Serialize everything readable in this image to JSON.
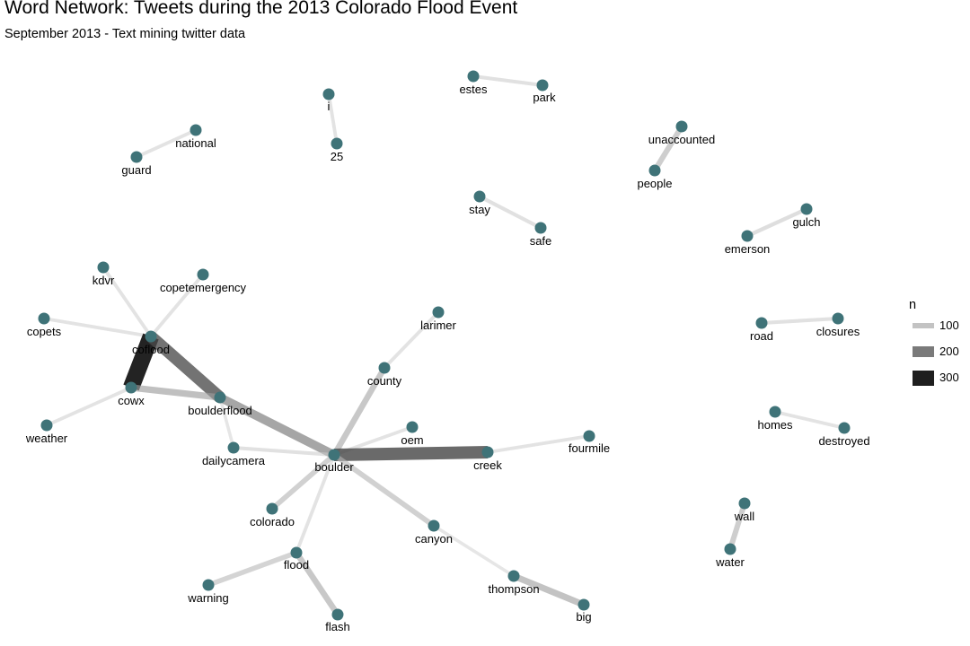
{
  "header": {
    "title": "Word Network: Tweets during the 2013 Colorado Flood Event",
    "subtitle": "September 2013 - Text mining twitter data"
  },
  "legend": {
    "title": "n",
    "items": [
      {
        "label": "100",
        "n": 100
      },
      {
        "label": "200",
        "n": 200
      },
      {
        "label": "300",
        "n": 300
      }
    ]
  },
  "colors": {
    "node": "#3f7378",
    "edge_low": "#d9d9d9",
    "edge_high": "#000000",
    "text": "#000000",
    "background": "#ffffff"
  },
  "chart_data": {
    "type": "network",
    "nodes": [
      {
        "id": "estes",
        "label": "estes"
      },
      {
        "id": "park",
        "label": "park"
      },
      {
        "id": "i",
        "label": "i"
      },
      {
        "id": "25",
        "label": "25"
      },
      {
        "id": "national",
        "label": "national"
      },
      {
        "id": "guard",
        "label": "guard"
      },
      {
        "id": "unaccounted",
        "label": "unaccounted"
      },
      {
        "id": "people",
        "label": "people"
      },
      {
        "id": "stay",
        "label": "stay"
      },
      {
        "id": "safe",
        "label": "safe"
      },
      {
        "id": "gulch",
        "label": "gulch"
      },
      {
        "id": "emerson",
        "label": "emerson"
      },
      {
        "id": "kdvr",
        "label": "kdvr"
      },
      {
        "id": "copetemergency",
        "label": "copetemergency"
      },
      {
        "id": "copets",
        "label": "copets"
      },
      {
        "id": "coflood",
        "label": "coflood"
      },
      {
        "id": "cowx",
        "label": "cowx"
      },
      {
        "id": "weather",
        "label": "weather"
      },
      {
        "id": "boulderflood",
        "label": "boulderflood"
      },
      {
        "id": "larimer",
        "label": "larimer"
      },
      {
        "id": "county",
        "label": "county"
      },
      {
        "id": "road",
        "label": "road"
      },
      {
        "id": "closures",
        "label": "closures"
      },
      {
        "id": "oem",
        "label": "oem"
      },
      {
        "id": "dailycamera",
        "label": "dailycamera"
      },
      {
        "id": "boulder",
        "label": "boulder"
      },
      {
        "id": "creek",
        "label": "creek"
      },
      {
        "id": "fourmile",
        "label": "fourmile"
      },
      {
        "id": "homes",
        "label": "homes"
      },
      {
        "id": "destroyed",
        "label": "destroyed"
      },
      {
        "id": "colorado",
        "label": "colorado"
      },
      {
        "id": "flood",
        "label": "flood"
      },
      {
        "id": "warning",
        "label": "warning"
      },
      {
        "id": "flash",
        "label": "flash"
      },
      {
        "id": "canyon",
        "label": "canyon"
      },
      {
        "id": "thompson",
        "label": "thompson"
      },
      {
        "id": "big",
        "label": "big"
      },
      {
        "id": "wall",
        "label": "wall"
      },
      {
        "id": "water",
        "label": "water"
      }
    ],
    "edges": [
      {
        "from": "estes",
        "to": "park",
        "n": 60
      },
      {
        "from": "i",
        "to": "25",
        "n": 55
      },
      {
        "from": "national",
        "to": "guard",
        "n": 55
      },
      {
        "from": "unaccounted",
        "to": "people",
        "n": 95
      },
      {
        "from": "stay",
        "to": "safe",
        "n": 60
      },
      {
        "from": "gulch",
        "to": "emerson",
        "n": 65
      },
      {
        "from": "kdvr",
        "to": "coflood",
        "n": 55
      },
      {
        "from": "copetemergency",
        "to": "coflood",
        "n": 55
      },
      {
        "from": "copets",
        "to": "coflood",
        "n": 55
      },
      {
        "from": "weather",
        "to": "cowx",
        "n": 55
      },
      {
        "from": "coflood",
        "to": "cowx",
        "n": 320
      },
      {
        "from": "coflood",
        "to": "boulderflood",
        "n": 230
      },
      {
        "from": "cowx",
        "to": "boulderflood",
        "n": 120
      },
      {
        "from": "boulderflood",
        "to": "dailycamera",
        "n": 50
      },
      {
        "from": "boulderflood",
        "to": "boulder",
        "n": 160
      },
      {
        "from": "larimer",
        "to": "county",
        "n": 55
      },
      {
        "from": "county",
        "to": "boulder",
        "n": 105
      },
      {
        "from": "road",
        "to": "closures",
        "n": 60
      },
      {
        "from": "oem",
        "to": "boulder",
        "n": 55
      },
      {
        "from": "dailycamera",
        "to": "boulder",
        "n": 60
      },
      {
        "from": "boulder",
        "to": "creek",
        "n": 240
      },
      {
        "from": "creek",
        "to": "fourmile",
        "n": 55
      },
      {
        "from": "homes",
        "to": "destroyed",
        "n": 55
      },
      {
        "from": "colorado",
        "to": "boulder",
        "n": 90
      },
      {
        "from": "flood",
        "to": "boulder",
        "n": 55
      },
      {
        "from": "warning",
        "to": "flood",
        "n": 85
      },
      {
        "from": "flash",
        "to": "flood",
        "n": 105
      },
      {
        "from": "boulder",
        "to": "canyon",
        "n": 90
      },
      {
        "from": "canyon",
        "to": "thompson",
        "n": 50
      },
      {
        "from": "thompson",
        "to": "big",
        "n": 115
      },
      {
        "from": "wall",
        "to": "water",
        "n": 95
      }
    ]
  }
}
